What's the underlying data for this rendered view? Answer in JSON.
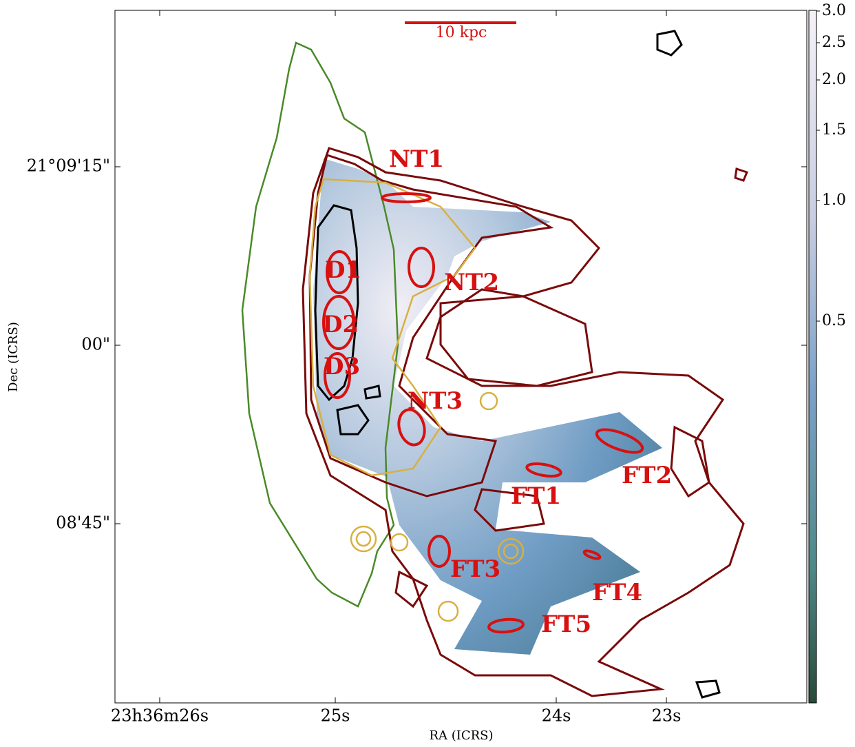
{
  "figure": {
    "x_label": "RA (ICRS)",
    "y_label": "Dec (ICRS)",
    "x_ticks": [
      "23h36m26s",
      "25s",
      "24s",
      "23s"
    ],
    "y_ticks": [
      "21°09'15\"",
      "00\"",
      "08'45\""
    ],
    "colorbar_ticks": [
      "3.0",
      "2.5",
      "2.0",
      "1.5",
      "1.0",
      "0.5"
    ],
    "scale_bar": "10 kpc",
    "regions": [
      "NT1",
      "NT2",
      "NT3",
      "D1",
      "D2",
      "D3",
      "FT1",
      "FT2",
      "FT3",
      "FT4",
      "FT5"
    ]
  }
}
